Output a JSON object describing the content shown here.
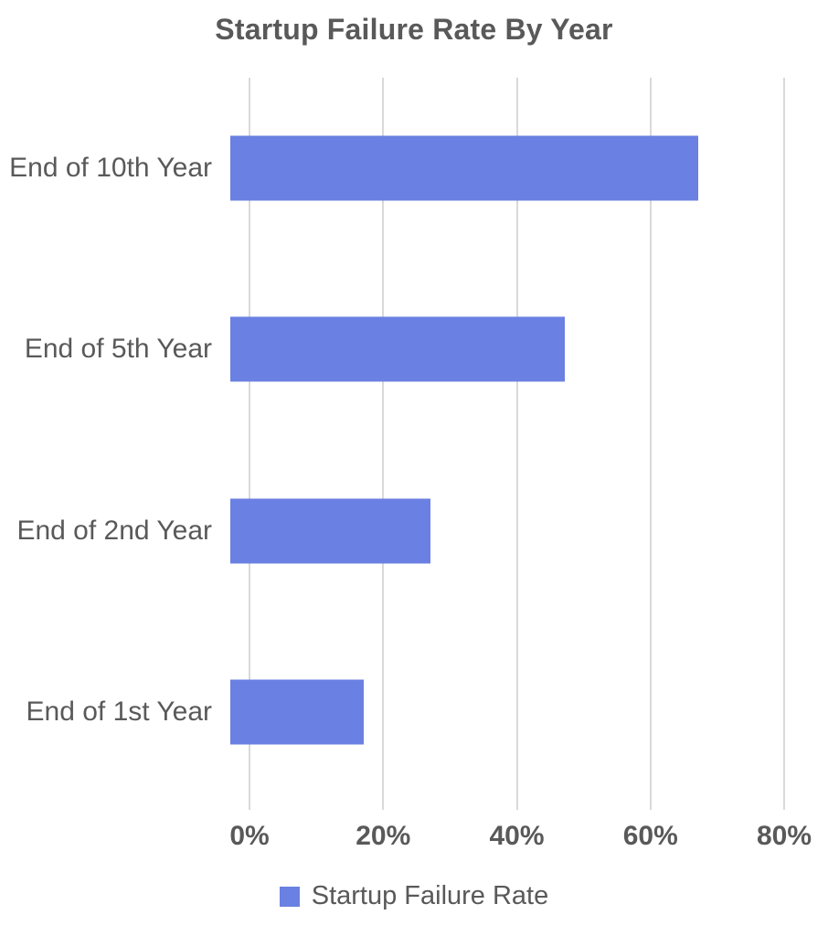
{
  "chart_data": {
    "type": "bar",
    "orientation": "horizontal",
    "title": "Startup Failure Rate By Year",
    "categories": [
      "End of 10th Year",
      "End of 5th Year",
      "End of 2nd Year",
      "End of 1st Year"
    ],
    "series": [
      {
        "name": "Startup Failure Rate",
        "values": [
          70,
          50,
          30,
          20
        ]
      }
    ],
    "value_axis": {
      "min": 0,
      "max": 80,
      "ticks": [
        0,
        20,
        40,
        60,
        80
      ],
      "tick_labels": [
        "0%",
        "20%",
        "40%",
        "60%",
        "80%"
      ],
      "unit": "%"
    },
    "grid": true,
    "legend": {
      "position": "bottom",
      "entries": [
        "Startup Failure Rate"
      ]
    },
    "colors": {
      "bar": "#6A80E2",
      "gridline": "#D9D9D9",
      "text": "#595959",
      "background": "#FFFFFF"
    }
  }
}
